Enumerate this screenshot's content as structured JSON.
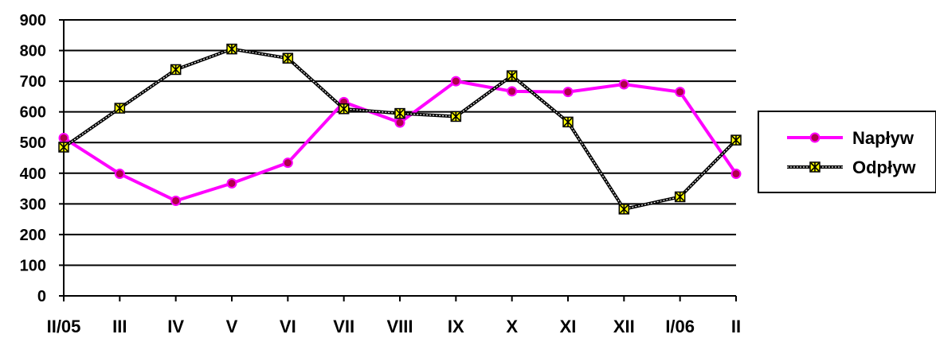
{
  "chart_data": {
    "type": "line",
    "title": "",
    "xlabel": "",
    "ylabel": "",
    "categories": [
      "II/05",
      "III",
      "IV",
      "V",
      "VI",
      "VII",
      "VIII",
      "IX",
      "X",
      "XI",
      "XII",
      "I/06",
      "II"
    ],
    "y_ticks": [
      "0",
      "100",
      "200",
      "300",
      "400",
      "500",
      "600",
      "700",
      "800",
      "900"
    ],
    "ylim": [
      0,
      900
    ],
    "grid": "horizontal",
    "legend_position": "right",
    "series": [
      {
        "name": "Napływ",
        "color": "#ff00ff",
        "marker_color": "#b0004a",
        "line_style": "solid",
        "marker": "circle",
        "values": [
          515,
          398,
          310,
          367,
          434,
          632,
          565,
          700,
          667,
          665,
          690,
          665,
          398
        ]
      },
      {
        "name": "Odpływ",
        "color": "#000000",
        "marker_color": "#ffff00",
        "line_style": "dotted",
        "marker": "star-square",
        "values": [
          485,
          612,
          738,
          805,
          775,
          610,
          595,
          585,
          718,
          567,
          283,
          323,
          508
        ]
      }
    ]
  }
}
